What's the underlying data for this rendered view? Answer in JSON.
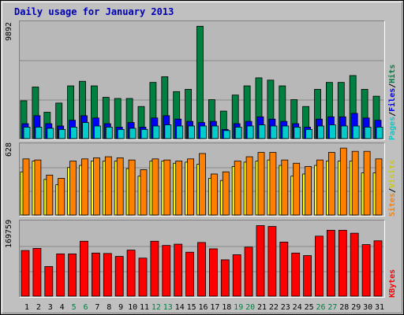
{
  "title": "Daily usage for January 2013",
  "colors": {
    "pages": "#00cccc",
    "files": "#0000ff",
    "hits": "#008040",
    "sites": "#ff8000",
    "visits": "#ffff00",
    "kbytes": "#ff0000",
    "weekday_label": "#000000",
    "weekend_label": "#008040"
  },
  "chart_data": [
    {
      "type": "bar",
      "name": "hits-files-pages",
      "ymax_label": "9892",
      "ylim": [
        0,
        9892
      ],
      "legend": [
        "Pages",
        "/",
        "Files",
        "/",
        "Hits"
      ],
      "categories": [
        "1",
        "2",
        "3",
        "4",
        "5",
        "6",
        "7",
        "8",
        "9",
        "10",
        "11",
        "12",
        "13",
        "14",
        "15",
        "16",
        "17",
        "18",
        "19",
        "20",
        "21",
        "22",
        "23",
        "24",
        "25",
        "26",
        "27",
        "28",
        "29",
        "30",
        "31"
      ],
      "weekend_days": [
        "5",
        "6",
        "12",
        "13",
        "19",
        "20",
        "26",
        "27"
      ],
      "series": [
        {
          "name": "Hits",
          "values": [
            3300,
            4500,
            2300,
            3100,
            4600,
            5000,
            4600,
            3600,
            3500,
            3500,
            2800,
            4900,
            5400,
            4100,
            4300,
            9800,
            3400,
            2400,
            3800,
            4600,
            5300,
            5100,
            4600,
            3400,
            2800,
            4300,
            4900,
            4900,
            5500,
            4300,
            3700
          ]
        },
        {
          "name": "Files",
          "values": [
            1300,
            2000,
            1300,
            1100,
            1600,
            2000,
            1800,
            1300,
            1000,
            1400,
            1000,
            1800,
            2000,
            1700,
            1500,
            1400,
            1500,
            800,
            1300,
            1500,
            1900,
            1700,
            1500,
            1300,
            1000,
            1700,
            1900,
            1900,
            2200,
            1800,
            1600
          ]
        },
        {
          "name": "Pages",
          "values": [
            1000,
            1000,
            900,
            800,
            1000,
            1400,
            1100,
            1000,
            800,
            900,
            800,
            1100,
            1200,
            1100,
            1100,
            1100,
            1100,
            700,
            1000,
            1100,
            1200,
            1100,
            1100,
            1000,
            800,
            1100,
            1200,
            1100,
            1100,
            1000,
            1000
          ]
        }
      ]
    },
    {
      "type": "bar",
      "name": "sites-visits",
      "ymax_label": "628",
      "ylim": [
        0,
        628
      ],
      "legend": [
        "Sites",
        "/",
        "Visits"
      ],
      "categories": [
        "1",
        "2",
        "3",
        "4",
        "5",
        "6",
        "7",
        "8",
        "9",
        "10",
        "11",
        "12",
        "13",
        "14",
        "15",
        "16",
        "17",
        "18",
        "19",
        "20",
        "21",
        "22",
        "23",
        "24",
        "25",
        "26",
        "27",
        "28",
        "29",
        "30",
        "31"
      ],
      "series": [
        {
          "name": "Sites",
          "values": [
            520,
            510,
            370,
            340,
            500,
            520,
            530,
            540,
            530,
            510,
            420,
            520,
            510,
            500,
            520,
            570,
            380,
            400,
            500,
            540,
            580,
            580,
            510,
            480,
            450,
            510,
            580,
            620,
            590,
            590,
            520
          ]
        },
        {
          "name": "Visits",
          "values": [
            400,
            500,
            330,
            280,
            440,
            460,
            500,
            500,
            500,
            430,
            360,
            500,
            500,
            480,
            490,
            470,
            340,
            320,
            450,
            490,
            500,
            510,
            460,
            360,
            380,
            460,
            500,
            500,
            500,
            390,
            390
          ]
        }
      ]
    },
    {
      "type": "bar",
      "name": "kbytes",
      "ymax_label": "169759",
      "ylim": [
        0,
        169759
      ],
      "legend": [
        "KBytes"
      ],
      "categories": [
        "1",
        "2",
        "3",
        "4",
        "5",
        "6",
        "7",
        "8",
        "9",
        "10",
        "11",
        "12",
        "13",
        "14",
        "15",
        "16",
        "17",
        "18",
        "19",
        "20",
        "21",
        "22",
        "23",
        "24",
        "25",
        "26",
        "27",
        "28",
        "29",
        "30",
        "31"
      ],
      "series": [
        {
          "name": "KBytes",
          "values": [
            108000,
            113000,
            70000,
            100000,
            100000,
            130000,
            102000,
            101000,
            94000,
            109000,
            90000,
            130000,
            120000,
            123000,
            104000,
            127000,
            112000,
            86000,
            98000,
            116000,
            167000,
            165000,
            128000,
            102000,
            96000,
            142000,
            156000,
            156000,
            149000,
            122000,
            131000
          ]
        }
      ]
    }
  ]
}
